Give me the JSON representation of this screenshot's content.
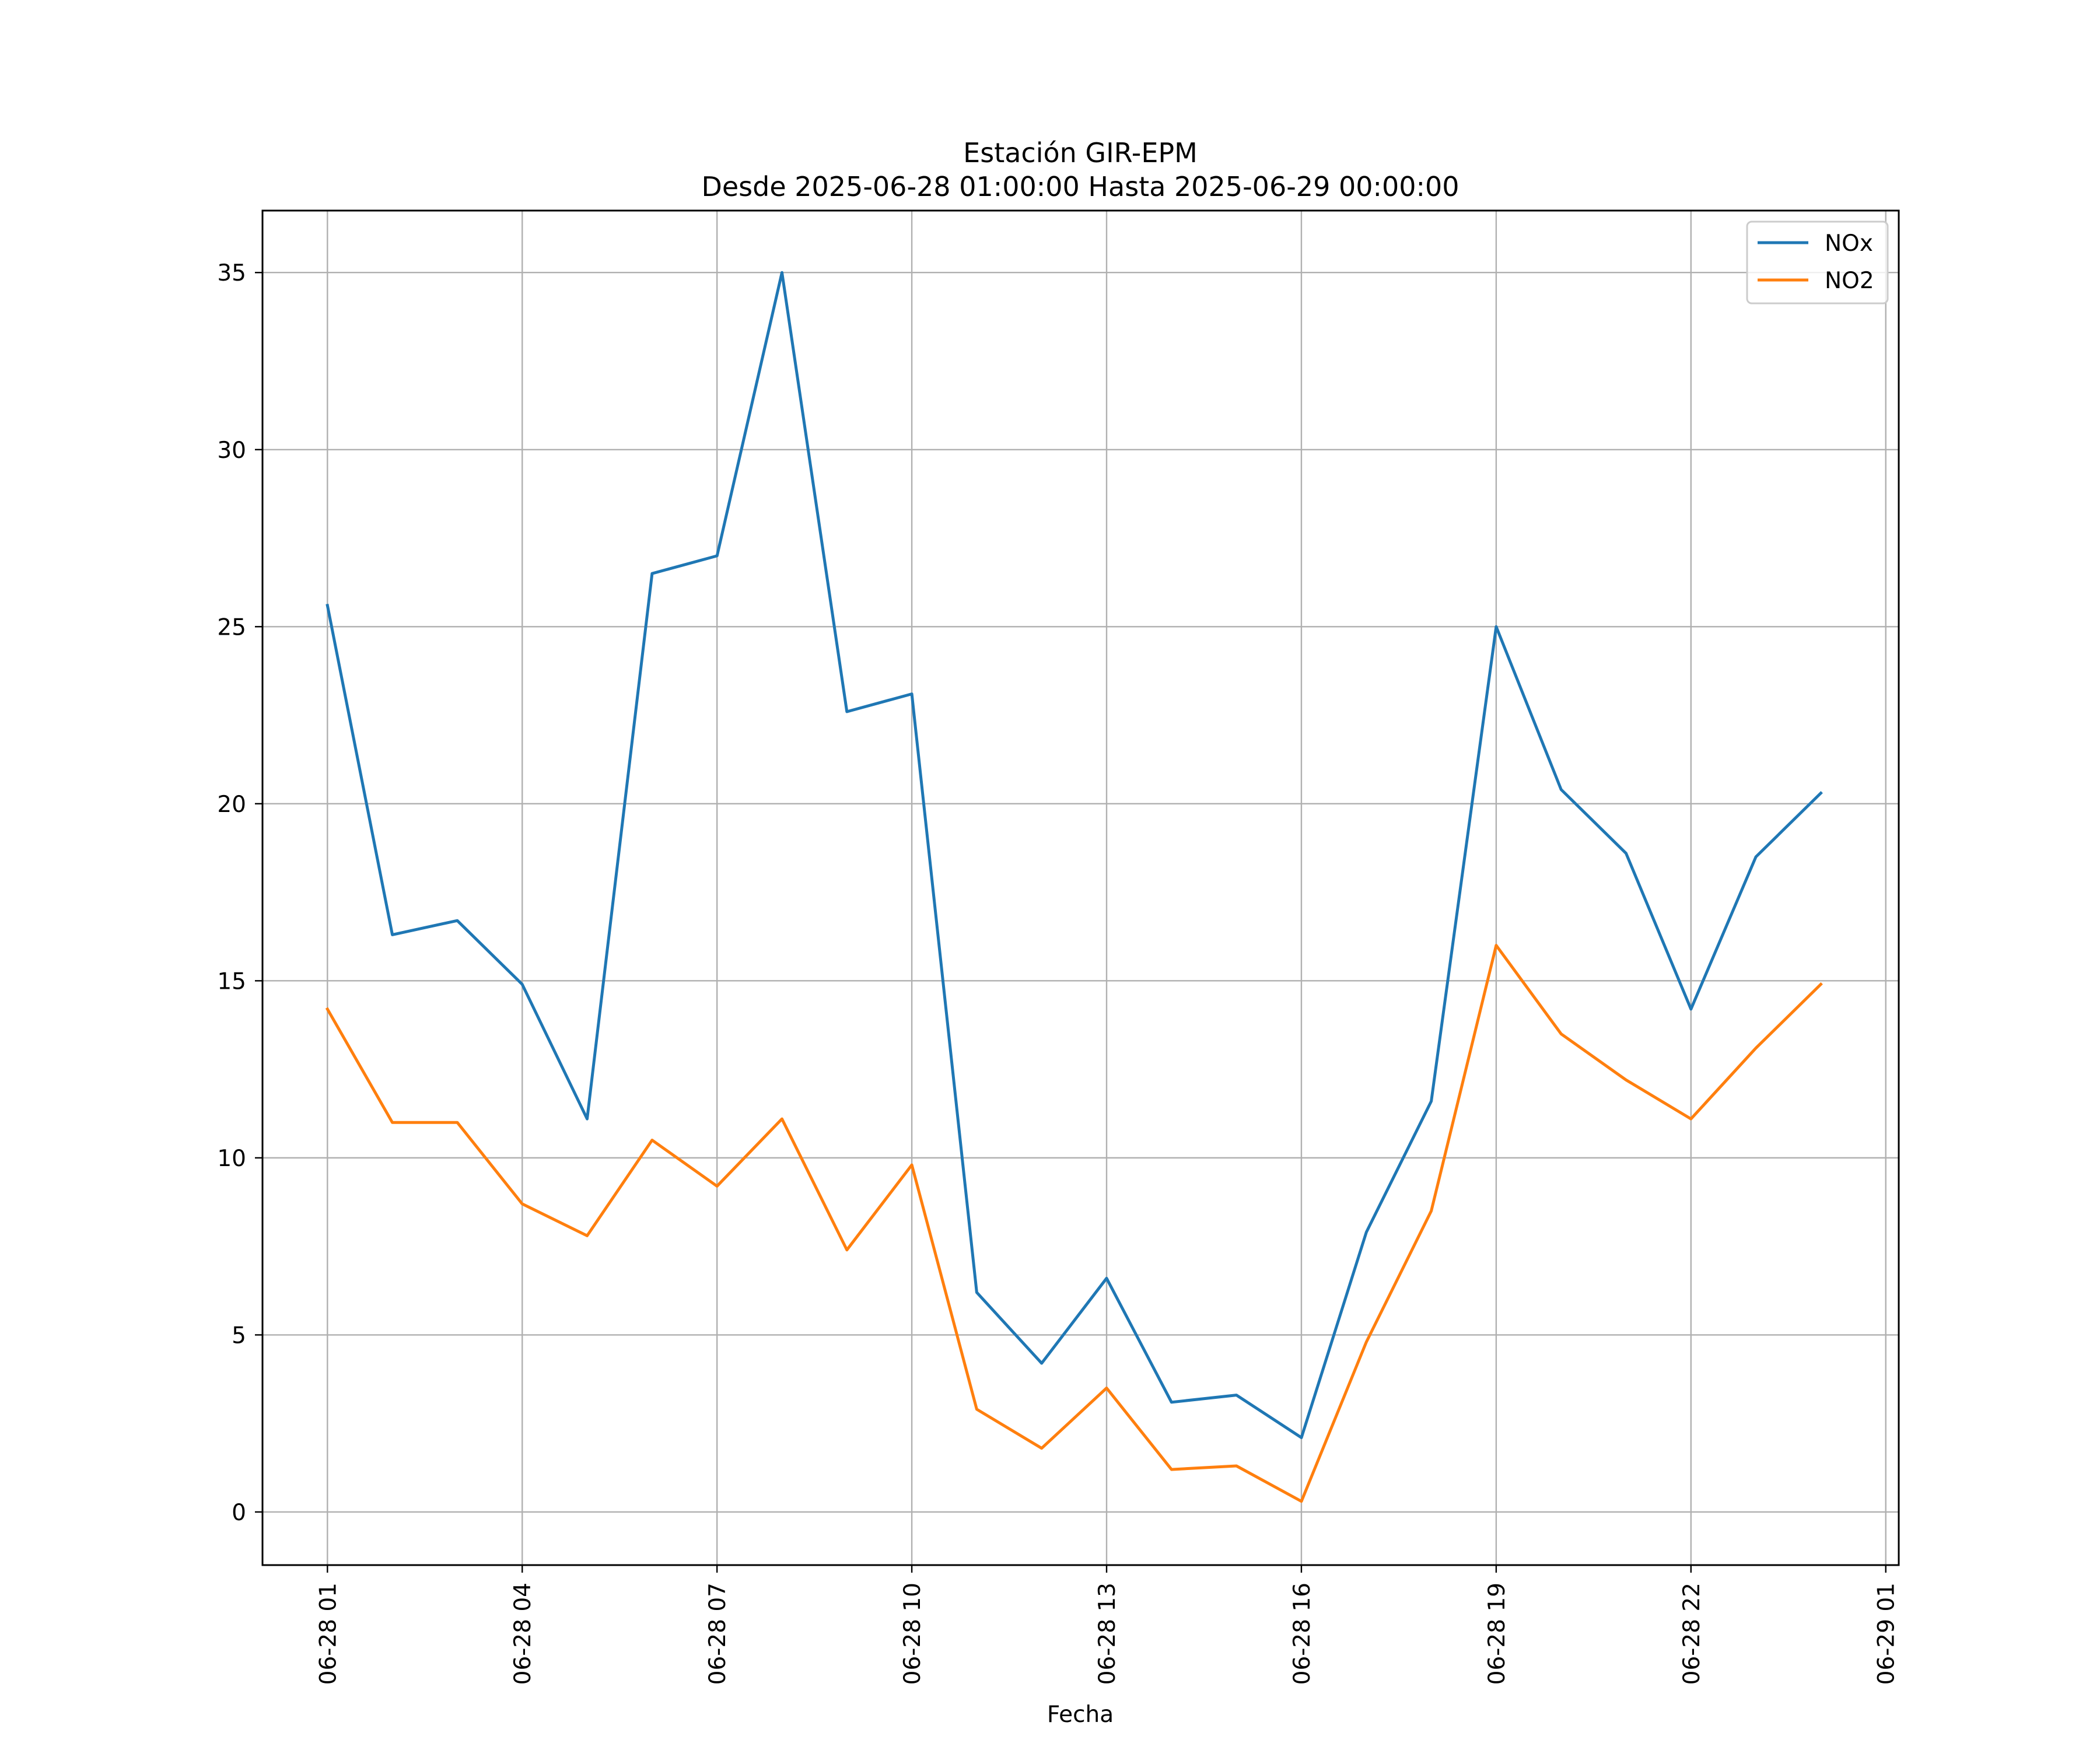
{
  "chart_data": {
    "type": "line",
    "title": "Estación GIR-EPM",
    "subtitle": "Desde 2025-06-28 01:00:00 Hasta 2025-06-29 00:00:00",
    "xlabel": "Fecha",
    "ylabel": "",
    "x": [
      "2025-06-28 01:00",
      "2025-06-28 02:00",
      "2025-06-28 03:00",
      "2025-06-28 04:00",
      "2025-06-28 05:00",
      "2025-06-28 06:00",
      "2025-06-28 07:00",
      "2025-06-28 08:00",
      "2025-06-28 09:00",
      "2025-06-28 10:00",
      "2025-06-28 11:00",
      "2025-06-28 12:00",
      "2025-06-28 13:00",
      "2025-06-28 14:00",
      "2025-06-28 15:00",
      "2025-06-28 16:00",
      "2025-06-28 17:00",
      "2025-06-28 18:00",
      "2025-06-28 19:00",
      "2025-06-28 20:00",
      "2025-06-28 21:00",
      "2025-06-28 22:00",
      "2025-06-28 23:00",
      "2025-06-29 00:00"
    ],
    "x_ticks": [
      "06-28 01",
      "06-28 04",
      "06-28 07",
      "06-28 10",
      "06-28 13",
      "06-28 16",
      "06-28 19",
      "06-28 22",
      "06-29 01"
    ],
    "y_ticks": [
      0,
      5,
      10,
      15,
      20,
      25,
      30,
      35
    ],
    "ylim": [
      -1.5,
      36.75
    ],
    "xlim": [
      "2025-06-28 00:00",
      "2025-06-29 01:12"
    ],
    "grid": true,
    "legend_position": "top-right",
    "series": [
      {
        "name": "NOx",
        "color": "#1f77b4",
        "values": [
          25.6,
          16.3,
          16.7,
          14.9,
          11.1,
          26.5,
          27.0,
          35.0,
          22.6,
          23.1,
          6.2,
          4.2,
          6.6,
          3.1,
          3.3,
          2.1,
          7.9,
          11.6,
          25.0,
          20.4,
          18.6,
          14.2,
          18.5,
          20.3
        ]
      },
      {
        "name": "NO2",
        "color": "#ff7f0e",
        "values": [
          14.2,
          11.0,
          11.0,
          8.7,
          7.8,
          10.5,
          9.2,
          11.1,
          7.4,
          9.8,
          2.9,
          1.8,
          3.5,
          1.2,
          1.3,
          0.3,
          4.8,
          8.5,
          16.0,
          13.5,
          12.2,
          11.1,
          13.1,
          14.9
        ]
      }
    ]
  }
}
